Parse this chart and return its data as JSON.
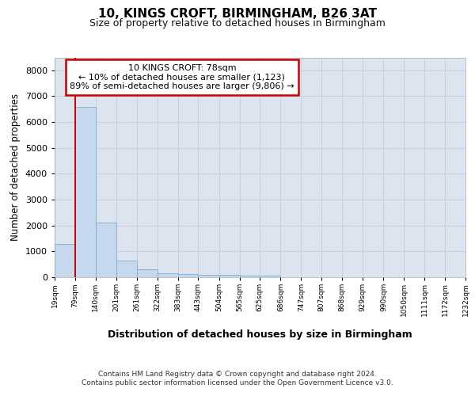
{
  "title1": "10, KINGS CROFT, BIRMINGHAM, B26 3AT",
  "title2": "Size of property relative to detached houses in Birmingham",
  "xlabel": "Distribution of detached houses by size in Birmingham",
  "ylabel": "Number of detached properties",
  "annotation_title": "10 KINGS CROFT: 78sqm",
  "annotation_line1": "← 10% of detached houses are smaller (1,123)",
  "annotation_line2": "89% of semi-detached houses are larger (9,806) →",
  "footer1": "Contains HM Land Registry data © Crown copyright and database right 2024.",
  "footer2": "Contains public sector information licensed under the Open Government Licence v3.0.",
  "bar_edges": [
    19,
    79,
    140,
    201,
    261,
    322,
    383,
    443,
    504,
    565,
    625,
    686,
    747,
    807,
    868,
    929,
    990,
    1050,
    1111,
    1172,
    1232
  ],
  "bar_heights": [
    1300,
    6600,
    2100,
    650,
    300,
    160,
    130,
    95,
    80,
    70,
    65,
    0,
    0,
    0,
    0,
    0,
    0,
    0,
    0,
    0
  ],
  "bar_color": "#c5d8ee",
  "bar_edgecolor": "#7bafd4",
  "red_line_x": 79,
  "ylim": [
    0,
    8500
  ],
  "yticks": [
    0,
    1000,
    2000,
    3000,
    4000,
    5000,
    6000,
    7000,
    8000
  ],
  "grid_color": "#c8d0e0",
  "bg_color": "#dce4f0",
  "annotation_box_facecolor": "#ffffff",
  "annotation_box_edgecolor": "#cc0000",
  "red_line_color": "#cc0000"
}
